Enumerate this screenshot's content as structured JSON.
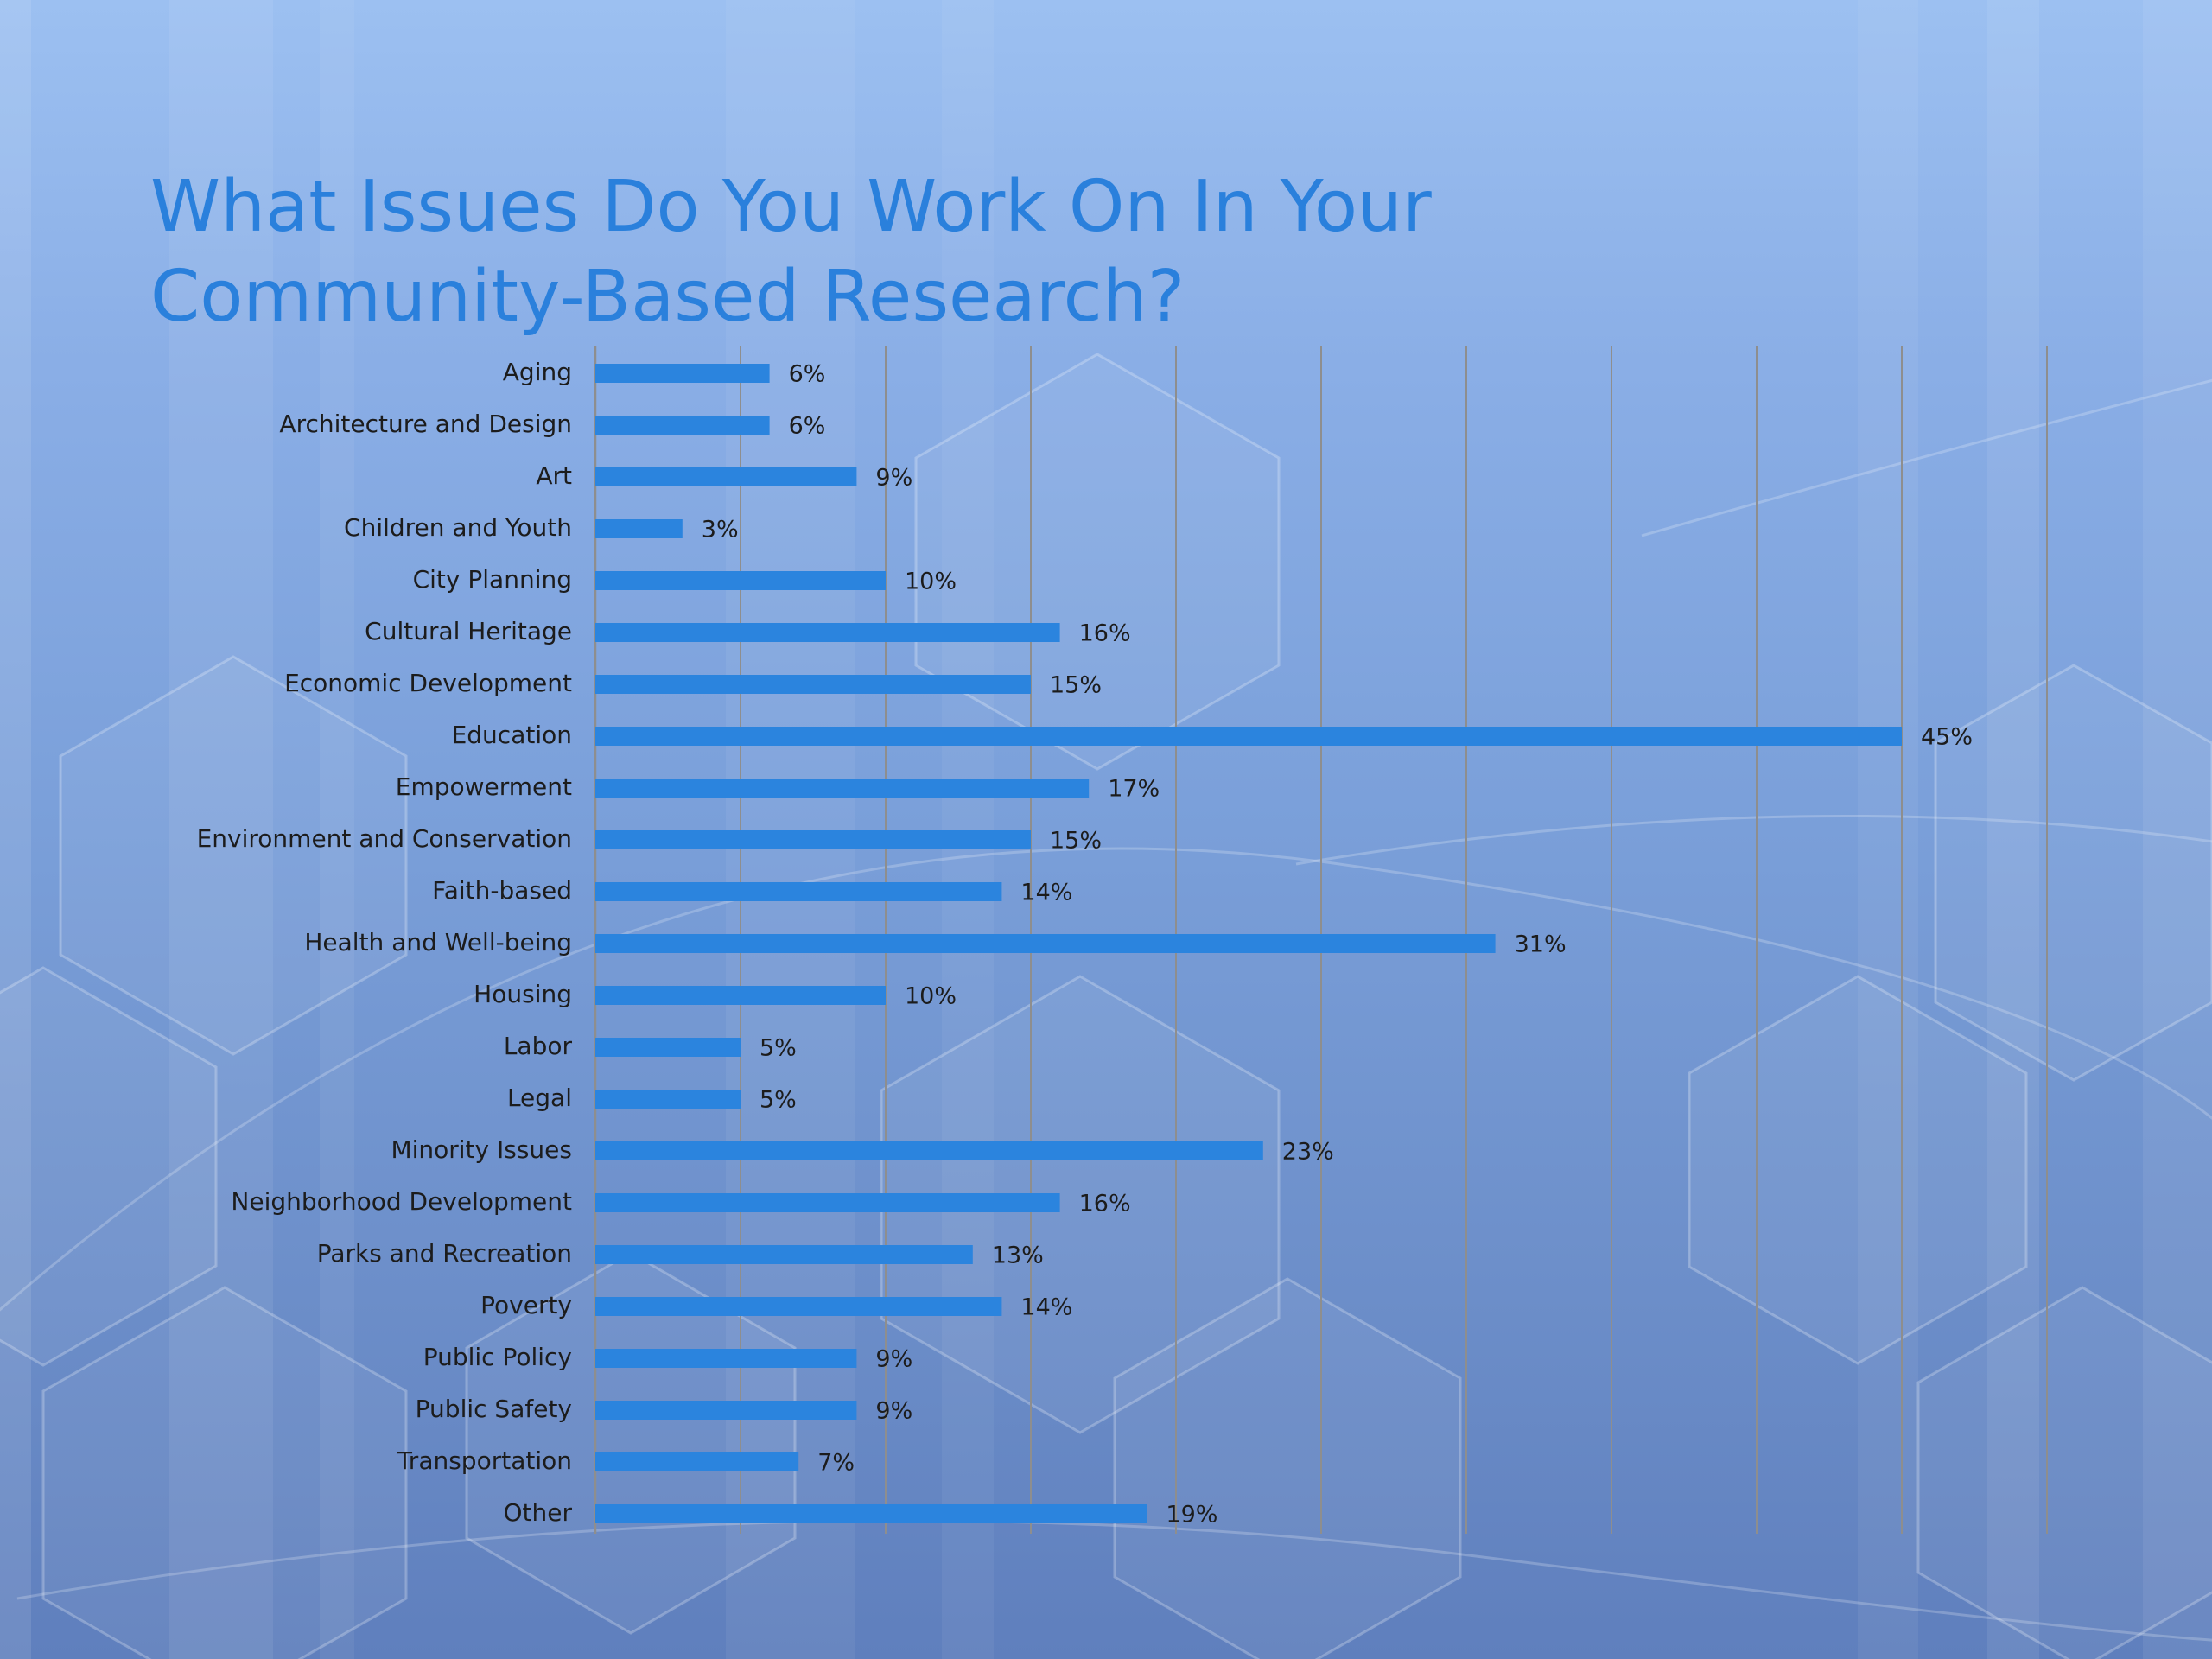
{
  "slide": {
    "title_line1": "What Issues Do You Work On In Your",
    "title_line2": "Community-Based Research?"
  },
  "colors": {
    "bar": "#2b84de",
    "title": "#2a80dc",
    "gridline": "#8e8e8e",
    "text": "#1c1c1c"
  },
  "chart_data": {
    "type": "bar",
    "orientation": "horizontal",
    "title": "What Issues Do You Work On In Your Community-Based Research?",
    "xlabel": "",
    "ylabel": "",
    "xlim": [
      0,
      50
    ],
    "grid": true,
    "legend": "none",
    "value_suffix": "%",
    "categories": [
      "Aging",
      "Architecture and Design",
      "Art",
      "Children and Youth",
      "City Planning",
      "Cultural Heritage",
      "Economic Development",
      "Education",
      "Empowerment",
      "Environment and Conservation",
      "Faith-based",
      "Health and Well-being",
      "Housing",
      "Labor",
      "Legal",
      "Minority Issues",
      "Neighborhood Development",
      "Parks and Recreation",
      "Poverty",
      "Public Policy",
      "Public Safety",
      "Transportation",
      "Other"
    ],
    "values": [
      6,
      6,
      9,
      3,
      10,
      16,
      15,
      45,
      17,
      15,
      14,
      31,
      10,
      5,
      5,
      23,
      16,
      13,
      14,
      9,
      9,
      7,
      19
    ],
    "value_labels": [
      "6%",
      "6%",
      "9%",
      "3%",
      "10%",
      "16%",
      "15%",
      "45%",
      "17%",
      "15%",
      "14%",
      "31%",
      "10%",
      "5%",
      "5%",
      "23%",
      "16%",
      "13%",
      "14%",
      "9%",
      "9%",
      "7%",
      "19%"
    ]
  }
}
